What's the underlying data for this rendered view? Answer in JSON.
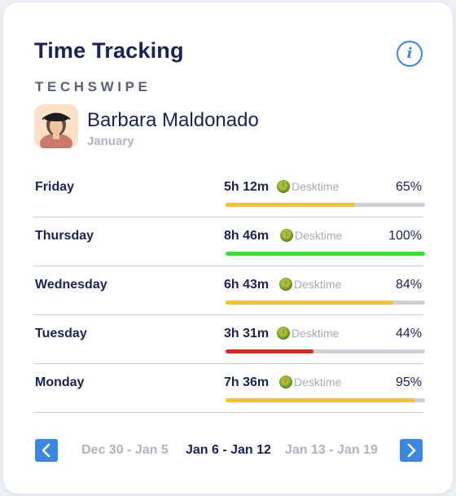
{
  "header": {
    "title": "Time Tracking",
    "info_label": "i"
  },
  "company": "TECHSWIPE",
  "user": {
    "name": "Barbara Maldonado",
    "period": "January"
  },
  "days": [
    {
      "day": "Friday",
      "duration": "5h 12m",
      "source": "Desktime",
      "percent_label": "65%",
      "percent": 65,
      "bar_color": "#f5c518"
    },
    {
      "day": "Thursday",
      "duration": "8h 46m",
      "source": "Desktime",
      "percent_label": "100%",
      "percent": 100,
      "bar_color": "#2ee62e"
    },
    {
      "day": "Wednesday",
      "duration": "6h 43m",
      "source": "Desktime",
      "percent_label": "84%",
      "percent": 84,
      "bar_color": "#f5c518"
    },
    {
      "day": "Tuesday",
      "duration": "3h 31m",
      "source": "Desktime",
      "percent_label": "44%",
      "percent": 44,
      "bar_color": "#e82020"
    },
    {
      "day": "Monday",
      "duration": "7h 36m",
      "source": "Desktime",
      "percent_label": "95%",
      "percent": 95,
      "bar_color": "#f5c518"
    }
  ],
  "pager": {
    "weeks": [
      "Dec 30 - Jan 5",
      "Jan 6 - Jan 12",
      "Jan 13 - Jan 19"
    ],
    "active_index": 1
  },
  "colors": {
    "accent": "#3a86e0",
    "text_primary": "#1c2257",
    "text_muted": "#b0b3c2"
  },
  "icons": {
    "info": "info-icon",
    "source": "desktime-icon",
    "prev": "chevron-left-icon",
    "next": "chevron-right-icon"
  }
}
